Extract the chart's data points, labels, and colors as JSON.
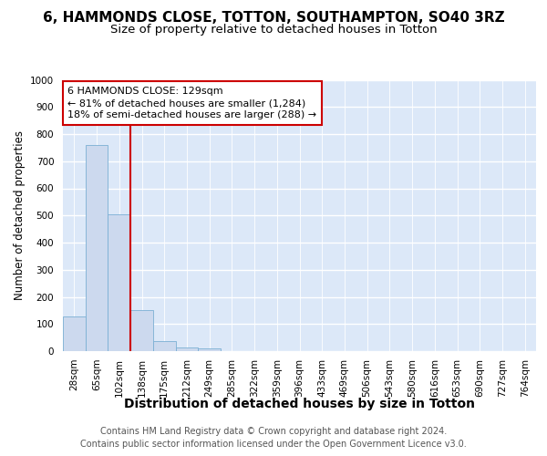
{
  "title1": "6, HAMMONDS CLOSE, TOTTON, SOUTHAMPTON, SO40 3RZ",
  "title2": "Size of property relative to detached houses in Totton",
  "xlabel": "Distribution of detached houses by size in Totton",
  "ylabel": "Number of detached properties",
  "footer": "Contains HM Land Registry data © Crown copyright and database right 2024.\nContains public sector information licensed under the Open Government Licence v3.0.",
  "bar_labels": [
    "28sqm",
    "65sqm",
    "102sqm",
    "138sqm",
    "175sqm",
    "212sqm",
    "249sqm",
    "285sqm",
    "322sqm",
    "359sqm",
    "396sqm",
    "433sqm",
    "469sqm",
    "506sqm",
    "543sqm",
    "580sqm",
    "616sqm",
    "653sqm",
    "690sqm",
    "727sqm",
    "764sqm"
  ],
  "bar_values": [
    128,
    760,
    503,
    152,
    38,
    15,
    9,
    0,
    0,
    0,
    0,
    0,
    0,
    0,
    0,
    0,
    0,
    0,
    0,
    0,
    0
  ],
  "bar_color": "#ccd9ee",
  "bar_edge_color": "#7bafd4",
  "vline_x": 2.5,
  "vline_color": "#cc0000",
  "annotation_text": "6 HAMMONDS CLOSE: 129sqm\n← 81% of detached houses are smaller (1,284)\n18% of semi-detached houses are larger (288) →",
  "annotation_box_color": "#ffffff",
  "annotation_box_edge": "#cc0000",
  "ylim": [
    0,
    1000
  ],
  "yticks": [
    0,
    100,
    200,
    300,
    400,
    500,
    600,
    700,
    800,
    900,
    1000
  ],
  "background_color": "#dce8f8",
  "grid_color": "#ffffff",
  "title1_fontsize": 11,
  "title2_fontsize": 9.5,
  "xlabel_fontsize": 10,
  "ylabel_fontsize": 8.5,
  "tick_fontsize": 7.5,
  "annotation_fontsize": 8,
  "footer_fontsize": 7
}
